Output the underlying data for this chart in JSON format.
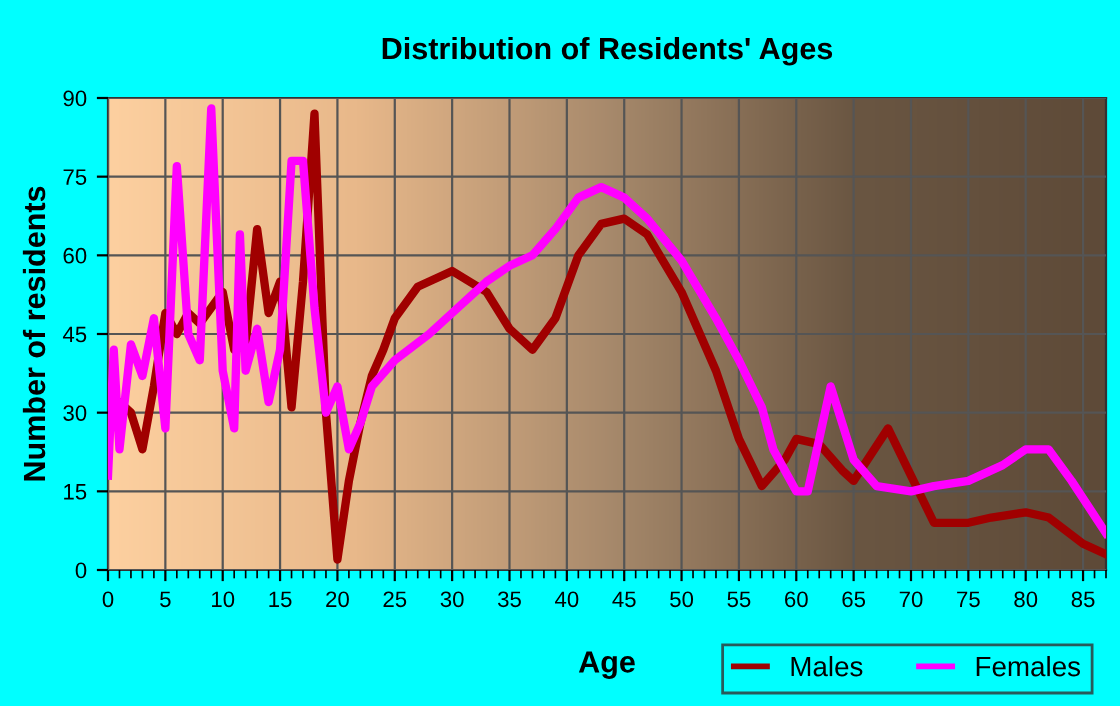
{
  "chart_data": {
    "type": "line",
    "title": "Distribution of Residents' Ages",
    "xlabel": "Age",
    "ylabel": "Number of residents",
    "xlim": [
      0,
      87
    ],
    "xticks": [
      0,
      5,
      10,
      15,
      20,
      25,
      30,
      35,
      40,
      45,
      50,
      55,
      60,
      65,
      70,
      75,
      80,
      85
    ],
    "ylim": [
      0,
      90
    ],
    "yticks": [
      0,
      15,
      30,
      45,
      60,
      75,
      90
    ],
    "grid": true,
    "legend": "bottom right",
    "marker": "none",
    "line_style": "solid",
    "series": [
      {
        "name": "Males",
        "color": "#a00000",
        "x": [
          0,
          1,
          2,
          3,
          4,
          5,
          6,
          7,
          8,
          9,
          10,
          11,
          12,
          13,
          14,
          15,
          16,
          17,
          18,
          19,
          20,
          21,
          22,
          23,
          24,
          25,
          27,
          30,
          33,
          35,
          37,
          39,
          41,
          43,
          45,
          47,
          50,
          53,
          55,
          57,
          59,
          60,
          62,
          64,
          65,
          68,
          70,
          72,
          75,
          77,
          80,
          82,
          85,
          87
        ],
        "values": [
          31,
          32,
          30,
          23,
          35,
          49,
          45,
          49,
          47,
          50,
          53,
          42,
          43,
          65,
          49,
          55,
          31,
          55,
          87,
          30,
          2,
          17,
          28,
          37,
          42,
          48,
          54,
          57,
          53,
          46,
          42,
          48,
          60,
          66,
          67,
          64,
          53,
          38,
          25,
          16,
          21,
          25,
          24,
          19,
          17,
          27,
          18,
          9,
          9,
          10,
          11,
          10,
          5,
          3
        ]
      },
      {
        "name": "Females",
        "color": "#ff00ff",
        "x": [
          0,
          0.5,
          1,
          2,
          3,
          4,
          5,
          6,
          7,
          8,
          9,
          10,
          11,
          11.5,
          12,
          13,
          14,
          15,
          16,
          17,
          18,
          19,
          20,
          21,
          22,
          23,
          25,
          28,
          30,
          33,
          35,
          37,
          39,
          41,
          43,
          45,
          47,
          50,
          53,
          55,
          57,
          58,
          60,
          61,
          63,
          65,
          67,
          70,
          72,
          75,
          78,
          80,
          82,
          84,
          87
        ],
        "values": [
          18,
          42,
          23,
          43,
          37,
          48,
          27,
          77,
          45,
          40,
          88,
          38,
          27,
          64,
          38,
          46,
          32,
          42,
          78,
          78,
          50,
          30,
          35,
          23,
          28,
          35,
          40,
          45,
          49,
          55,
          58,
          60,
          65,
          71,
          73,
          71,
          67,
          59,
          48,
          40,
          31,
          23,
          15,
          15,
          35,
          21,
          16,
          15,
          16,
          17,
          20,
          23,
          23,
          17,
          7
        ]
      }
    ]
  }
}
